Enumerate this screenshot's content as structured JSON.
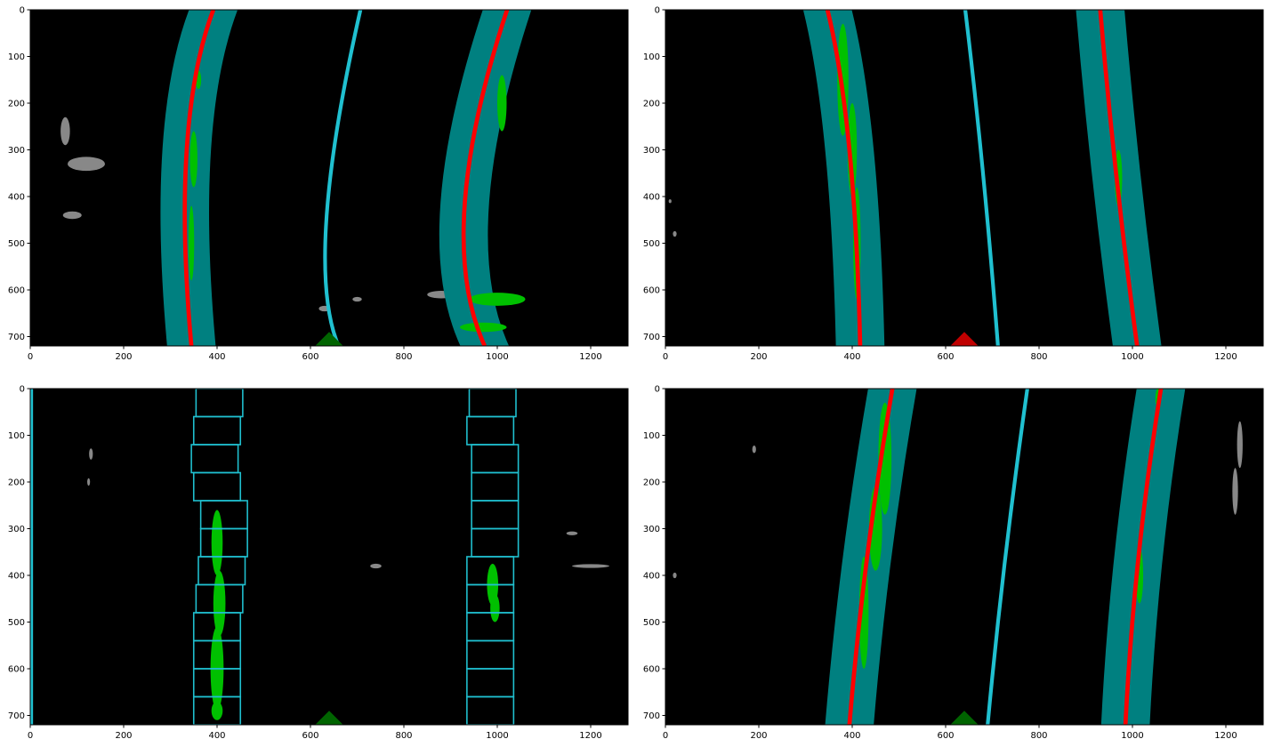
{
  "chart_data": [
    {
      "type": "image",
      "xlim": [
        0,
        1280
      ],
      "ylim": [
        720,
        0
      ],
      "xticks": [
        0,
        200,
        400,
        600,
        800,
        1000,
        1200
      ],
      "yticks": [
        0,
        100,
        200,
        300,
        400,
        500,
        600,
        700
      ]
    },
    {
      "type": "image",
      "xlim": [
        0,
        1280
      ],
      "ylim": [
        720,
        0
      ],
      "xticks": [
        0,
        200,
        400,
        600,
        800,
        1000,
        1200
      ],
      "yticks": [
        0,
        100,
        200,
        300,
        400,
        500,
        600,
        700
      ]
    },
    {
      "type": "image",
      "xlim": [
        0,
        1280
      ],
      "ylim": [
        720,
        0
      ],
      "xticks": [
        0,
        200,
        400,
        600,
        800,
        1000,
        1200
      ],
      "yticks": [
        0,
        100,
        200,
        300,
        400,
        500,
        600,
        700
      ]
    },
    {
      "type": "image",
      "xlim": [
        0,
        1280
      ],
      "ylim": [
        720,
        0
      ],
      "xticks": [
        0,
        200,
        400,
        600,
        800,
        1000,
        1200
      ],
      "yticks": [
        0,
        100,
        200,
        300,
        400,
        500,
        600,
        700
      ]
    }
  ]
}
